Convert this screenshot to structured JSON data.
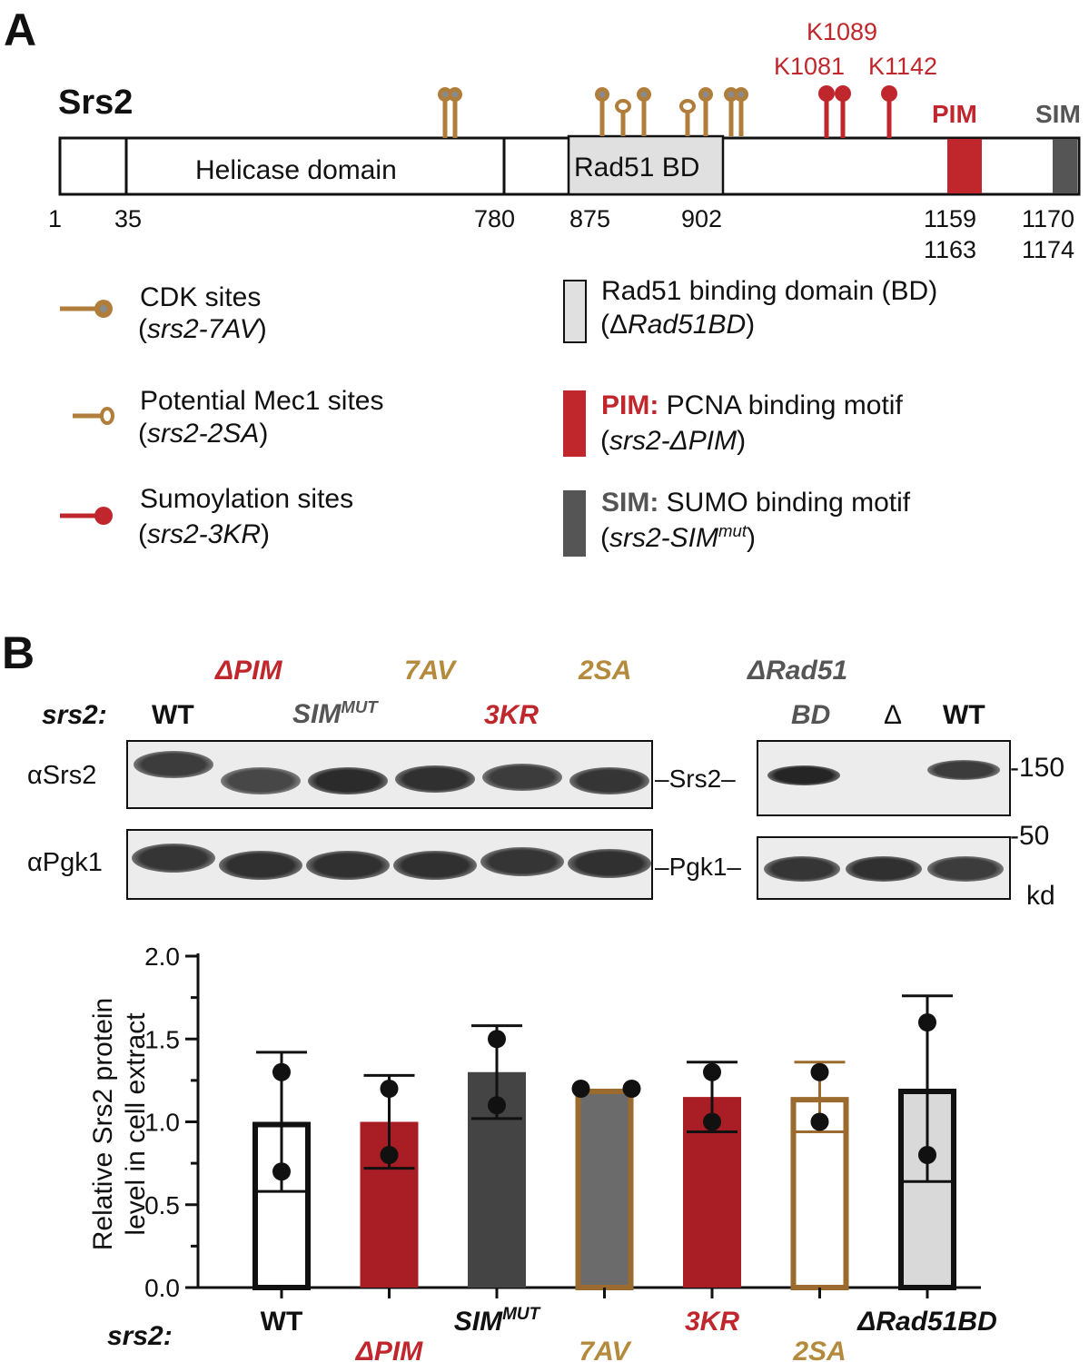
{
  "panel_a": {
    "letter": "A",
    "protein_name": "Srs2",
    "helicase_label": "Helicase domain",
    "rad51bd_label": "Rad51 BD",
    "pim_label": "PIM",
    "sim_label": "SIM",
    "positions": [
      "1",
      "35",
      "780",
      "875",
      "902"
    ],
    "pim_positions": [
      "1159",
      "1163"
    ],
    "sim_positions": [
      "1170",
      "1174"
    ],
    "lysine_labels": [
      "K1089",
      "K1081",
      "K1142"
    ],
    "legend": {
      "cdk": {
        "title": "CDK sites",
        "allele": "srs2-7AV"
      },
      "mec1": {
        "title": "Potential Mec1 sites",
        "allele": "srs2-2SA"
      },
      "sumo": {
        "title": "Sumoylation sites",
        "allele": "srs2-3KR"
      },
      "rad51bd": {
        "title": "Rad51 binding domain (BD)",
        "allele_prefix": "Δ",
        "allele": "Rad51BD"
      },
      "pim": {
        "bold": "PIM:",
        "title": " PCNA binding motif",
        "allele": "srs2-ΔPIM"
      },
      "sim": {
        "bold": "SIM:",
        "title": " SUMO binding motif",
        "allele": "srs2-SIM",
        "allele_sup": "mut"
      }
    },
    "colors": {
      "cdk": "#b07d3a",
      "sumo": "#c0272d",
      "pim": "#c0272d",
      "sim": "#555555",
      "rad51bd": "#d9d9d9"
    }
  },
  "panel_b": {
    "letter": "B",
    "srs2_label": "srs2:",
    "lane_labels_left": {
      "wt": "WT",
      "dpim": "ΔPIM",
      "simmut": "SIM",
      "simmut_sup": "MUT",
      "7av": "7AV",
      "3kr": "3KR",
      "2sa": "2SA"
    },
    "lane_labels_right": {
      "drad51_line1": "ΔRad51",
      "drad51_line2": "BD",
      "delta": "Δ",
      "wt": "WT"
    },
    "antibodies": [
      "αSrs2",
      "αPgk1"
    ],
    "protein_markers": [
      "Srs2",
      "Pgk1"
    ],
    "mw_markers": [
      "150",
      "50"
    ],
    "mw_unit": "kd",
    "band_intensity": {
      "srs2_left": [
        0.85,
        0.8,
        0.92,
        0.9,
        0.85,
        0.88
      ],
      "pgk1_left": [
        0.88,
        0.9,
        0.9,
        0.9,
        0.88,
        0.9
      ],
      "srs2_right": [
        0.95,
        0.0,
        0.85
      ],
      "pgk1_right": [
        0.88,
        0.9,
        0.85
      ]
    }
  },
  "chart_data": {
    "type": "bar",
    "ylabel_line1": "Relative Srs2 protein",
    "ylabel_line2": "level in cell extract",
    "ylim": [
      0.0,
      2.0
    ],
    "yticks": [
      "0.0",
      "0.5",
      "1.0",
      "1.5",
      "2.0"
    ],
    "x_prefix": "srs2:",
    "categories": [
      "WT",
      "ΔPIM",
      "SIM",
      "7AV",
      "3KR",
      "2SA",
      "ΔRad51BD"
    ],
    "category_sup": [
      "",
      "",
      "MUT",
      "",
      "",
      "",
      ""
    ],
    "category_colors": [
      "#111111",
      "#c0272d",
      "#111111",
      "#b48a3c",
      "#c0272d",
      "#b48a3c",
      "#111111"
    ],
    "values": [
      1.0,
      1.0,
      1.3,
      1.2,
      1.15,
      1.15,
      1.2
    ],
    "error_high": [
      1.42,
      1.28,
      1.58,
      1.2,
      1.36,
      1.36,
      1.76
    ],
    "error_low": [
      0.58,
      0.72,
      1.02,
      1.2,
      0.94,
      0.94,
      0.64
    ],
    "points": [
      [
        1.3,
        0.7
      ],
      [
        1.2,
        0.8
      ],
      [
        1.5,
        1.1
      ],
      [
        1.2,
        1.2
      ],
      [
        1.3,
        1.0
      ],
      [
        1.3,
        1.0
      ],
      [
        1.6,
        0.8
      ]
    ],
    "bar_fill": [
      "#ffffff",
      "#a81e24",
      "#444444",
      "#6b6b6b",
      "#a81e24",
      "#ffffff",
      "#d9d9d9"
    ],
    "bar_stroke": [
      "#111111",
      "#a81e24",
      "#444444",
      "#9a6a2e",
      "#a81e24",
      "#9a6a2e",
      "#111111"
    ]
  }
}
